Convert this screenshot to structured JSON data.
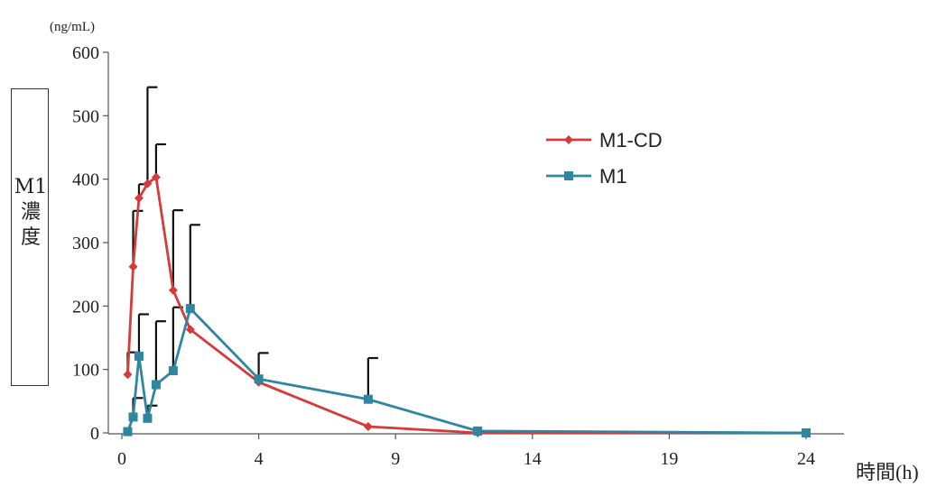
{
  "chart_data": {
    "type": "line",
    "unit_label": "(ng/mL)",
    "ylabel": "M1濃度",
    "xlabel": "時間(h)",
    "ylim": [
      0,
      600
    ],
    "xlim": [
      0,
      24
    ],
    "yticks": [
      0,
      100,
      200,
      300,
      400,
      500,
      600
    ],
    "xticks": [
      0,
      4,
      9,
      14,
      19,
      24
    ],
    "grid": false,
    "legend_position": "top-right",
    "series": [
      {
        "name": "M1-CD",
        "color": "#d63a3a",
        "marker": "diamond",
        "x": [
          0.17,
          0.33,
          0.5,
          0.75,
          1,
          1.5,
          2,
          4,
          8,
          12,
          24
        ],
        "y": [
          92,
          262,
          370,
          393,
          403,
          225,
          163,
          80,
          10,
          0,
          0
        ],
        "error": [
          35,
          88,
          22,
          152,
          52,
          126,
          0,
          0,
          0,
          0,
          0
        ]
      },
      {
        "name": "M1",
        "color": "#2e86a0",
        "marker": "square",
        "x": [
          0.17,
          0.33,
          0.5,
          0.75,
          1,
          1.5,
          2,
          4,
          8,
          12,
          24
        ],
        "y": [
          2,
          25,
          121,
          23,
          76,
          98,
          196,
          85,
          53,
          3,
          0
        ],
        "error": [
          0,
          30,
          66,
          20,
          100,
          100,
          132,
          41,
          65,
          0,
          0
        ]
      }
    ]
  }
}
